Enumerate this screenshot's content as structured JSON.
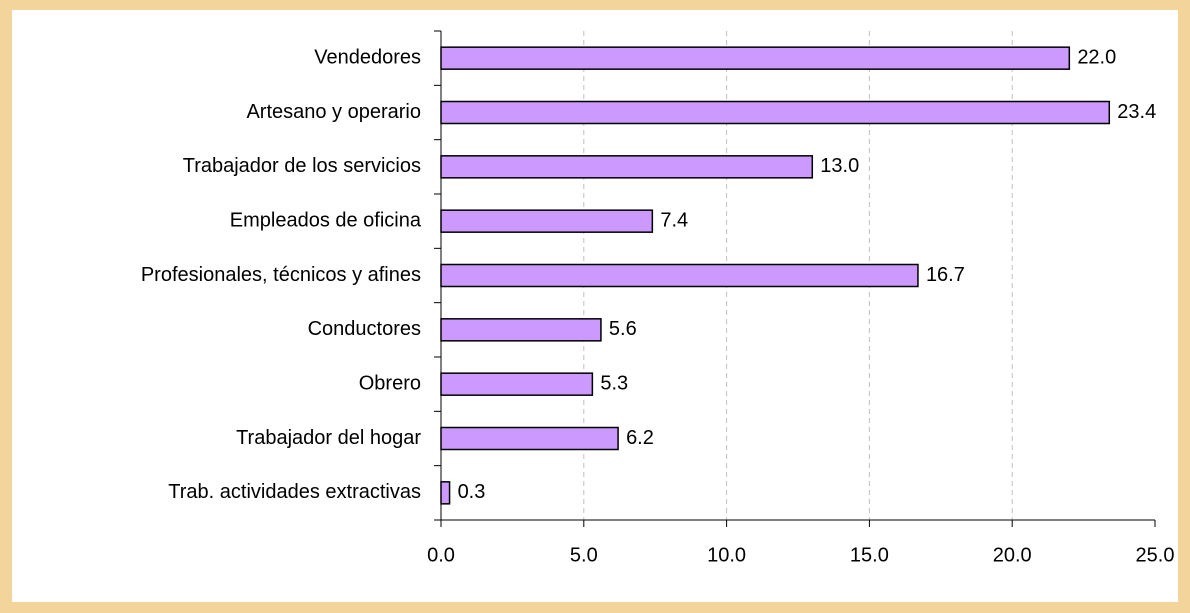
{
  "chart_data": {
    "type": "bar",
    "orientation": "horizontal",
    "categories": [
      "Vendedores",
      "Artesano y operario",
      "Trabajador de los servicios",
      "Empleados de oficina",
      "Profesionales, técnicos y afines",
      "Conductores",
      "Obrero",
      "Trabajador del hogar",
      "Trab. actividades extractivas"
    ],
    "values": [
      22.0,
      23.4,
      13.0,
      7.4,
      16.7,
      5.6,
      5.3,
      6.2,
      0.3
    ],
    "value_labels": [
      "22.0",
      "23.4",
      "13.0",
      "7.4",
      "16.7",
      "5.6",
      "5.3",
      "6.2",
      "0.3"
    ],
    "color": "#cc99ff",
    "xlim": [
      0,
      25
    ],
    "xticks": [
      {
        "value": 0,
        "label": "0.0"
      },
      {
        "value": 5,
        "label": "5.0"
      },
      {
        "value": 10,
        "label": "10.0"
      },
      {
        "value": 15,
        "label": "15.0"
      },
      {
        "value": 20,
        "label": "20.0"
      },
      {
        "value": 25,
        "label": "25.0"
      }
    ],
    "grid": true
  }
}
